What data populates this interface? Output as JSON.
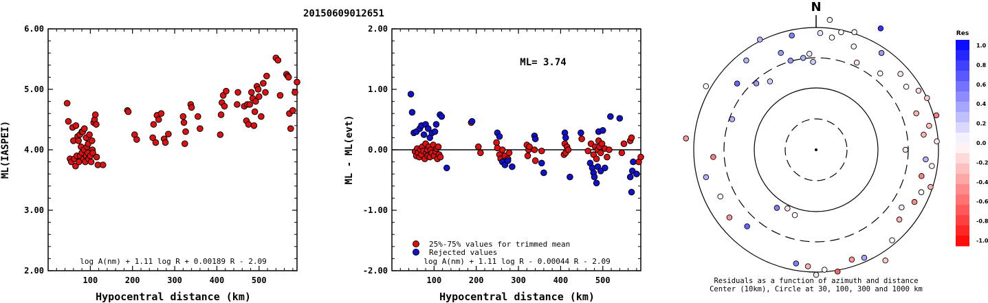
{
  "header": {
    "event_id": "20150609012651"
  },
  "chart_data": [
    {
      "id": "ml_vs_distance",
      "type": "scatter",
      "title": "",
      "xlabel": "Hypocentral distance (km)",
      "ylabel": "ML(IASPEI)",
      "xlim": [
        0,
        590
      ],
      "ylim": [
        2.0,
        6.0
      ],
      "xticks": [
        "100",
        "200",
        "300",
        "400",
        "500"
      ],
      "yticks": [
        "2.00",
        "3.00",
        "4.00",
        "5.00",
        "6.00"
      ],
      "annotation": "log A(nm) + 1.11 log R + 0.00189 R - 2.09",
      "marker_color": "#dd1111",
      "x": [
        45,
        48,
        52,
        55,
        58,
        60,
        62,
        65,
        66,
        68,
        70,
        72,
        73,
        75,
        76,
        78,
        80,
        80,
        82,
        84,
        85,
        86,
        88,
        90,
        90,
        92,
        94,
        95,
        96,
        98,
        100,
        102,
        104,
        105,
        106,
        108,
        110,
        112,
        114,
        115,
        118,
        130,
        188,
        190,
        205,
        210,
        248,
        250,
        255,
        258,
        262,
        268,
        275,
        278,
        285,
        320,
        322,
        324,
        326,
        338,
        340,
        355,
        360,
        408,
        410,
        412,
        415,
        418,
        422,
        448,
        450,
        465,
        470,
        472,
        475,
        478,
        482,
        485,
        488,
        490,
        492,
        495,
        498,
        500,
        505,
        510,
        515,
        518,
        540,
        545,
        550,
        565,
        568,
        570,
        572,
        575,
        580,
        585,
        590
      ],
      "y": [
        4.77,
        4.47,
        3.85,
        3.8,
        4.37,
        4.15,
        3.85,
        3.73,
        4.4,
        3.9,
        4.22,
        4.15,
        3.8,
        4.25,
        3.9,
        4.05,
        4.3,
        3.95,
        4.3,
        3.85,
        4.0,
        4.35,
        3.8,
        4.2,
        3.9,
        4.05,
        3.95,
        4.1,
        3.85,
        4.25,
        3.9,
        3.8,
        4.15,
        4.0,
        3.95,
        4.45,
        4.5,
        4.58,
        4.42,
        3.88,
        3.75,
        3.75,
        4.65,
        4.63,
        4.25,
        4.17,
        4.2,
        4.42,
        4.12,
        4.57,
        4.5,
        4.6,
        4.18,
        4.12,
        4.26,
        4.55,
        4.45,
        4.1,
        4.3,
        4.75,
        4.7,
        4.55,
        4.35,
        4.25,
        4.58,
        4.78,
        4.9,
        4.72,
        4.97,
        4.75,
        4.95,
        4.72,
        4.48,
        4.75,
        4.42,
        4.75,
        4.95,
        4.85,
        4.4,
        4.63,
        4.8,
        5.05,
        5.0,
        4.88,
        4.55,
        5.1,
        4.95,
        5.22,
        5.52,
        5.48,
        4.9,
        5.25,
        5.22,
        5.2,
        4.6,
        4.35,
        4.65,
        4.95,
        5.12
      ]
    },
    {
      "id": "residual_vs_distance",
      "type": "scatter",
      "title": "ML= 3.74",
      "xlabel": "Hypocentral distance (km)",
      "ylabel": "ML - ML(evt)",
      "xlim": [
        0,
        590
      ],
      "ylim": [
        -2.0,
        2.0
      ],
      "xticks": [
        "100",
        "200",
        "300",
        "400",
        "500"
      ],
      "yticks": [
        "-2.00",
        "-1.00",
        "0.00",
        "1.00",
        "2.00"
      ],
      "legend": [
        "25%-75% values for trimmed mean",
        "Rejected values"
      ],
      "legend_position": "bottom-left",
      "annotation": "log A(nm) + 1.11 log R - 0.00044 R - 2.09",
      "series": [
        {
          "name": "25%-75% values for trimmed mean",
          "color": "#dd1111",
          "x": [
            55,
            58,
            60,
            62,
            65,
            68,
            70,
            72,
            75,
            78,
            80,
            82,
            84,
            85,
            88,
            90,
            92,
            95,
            98,
            100,
            104,
            106,
            108,
            110,
            112,
            115,
            188,
            205,
            210,
            248,
            250,
            255,
            258,
            262,
            268,
            275,
            278,
            320,
            322,
            324,
            326,
            338,
            340,
            355,
            408,
            410,
            412,
            415,
            418,
            450,
            465,
            472,
            478,
            482,
            485,
            488,
            490,
            492,
            495,
            498,
            505,
            510,
            515,
            545,
            550,
            565,
            568,
            585,
            590
          ],
          "y": [
            -0.03,
            -0.1,
            0.02,
            -0.05,
            -0.12,
            0.0,
            -0.08,
            0.05,
            -0.02,
            -0.15,
            0.1,
            -0.05,
            0.0,
            -0.1,
            0.05,
            -0.12,
            0.0,
            -0.05,
            0.08,
            -0.1,
            -0.03,
            0.02,
            -0.15,
            0.05,
            -0.08,
            -0.12,
            0.45,
            0.05,
            -0.05,
            0.12,
            0.03,
            -0.08,
            -0.15,
            0.0,
            -0.1,
            -0.15,
            -0.05,
            0.08,
            -0.1,
            0.0,
            0.05,
            0.0,
            -0.18,
            -0.02,
            -0.08,
            0.1,
            -0.05,
            0.05,
            0.0,
            0.18,
            -0.02,
            0.1,
            -0.08,
            0.05,
            -0.15,
            0.0,
            0.15,
            0.05,
            -0.05,
            0.1,
            0.02,
            -0.12,
            0.0,
            -0.05,
            0.1,
            0.15,
            0.2,
            -0.2,
            -0.12
          ]
        },
        {
          "name": "Rejected values",
          "color": "#1111cc",
          "x": [
            45,
            48,
            52,
            58,
            66,
            70,
            76,
            80,
            86,
            90,
            95,
            102,
            105,
            114,
            118,
            130,
            190,
            250,
            255,
            262,
            268,
            275,
            285,
            338,
            340,
            355,
            360,
            410,
            412,
            422,
            448,
            470,
            475,
            478,
            480,
            485,
            488,
            490,
            495,
            500,
            505,
            518,
            540,
            565,
            568,
            570,
            572,
            580
          ],
          "y": [
            0.92,
            0.62,
            0.28,
            0.3,
            0.35,
            0.4,
            0.25,
            0.42,
            0.35,
            0.2,
            0.28,
            0.3,
            0.42,
            0.58,
            0.55,
            -0.3,
            0.47,
            0.28,
            0.22,
            -0.2,
            -0.25,
            -0.18,
            -0.28,
            0.23,
            0.18,
            -0.22,
            -0.38,
            0.28,
            0.2,
            -0.45,
            0.28,
            -0.22,
            -0.3,
            -0.38,
            -0.45,
            -0.55,
            -0.28,
            0.3,
            -0.35,
            0.32,
            -0.3,
            0.55,
            0.52,
            -0.45,
            -0.7,
            -0.35,
            -0.2,
            -0.4
          ]
        }
      ]
    },
    {
      "id": "residual_map",
      "type": "scatter",
      "title": "N",
      "caption_line1": "Residuals as a function of azimuth and distance",
      "caption_line2": "Center (10km), Circle at 30, 100, 300 and 1000 km",
      "colorbar": {
        "title": "Res",
        "labels": [
          "1.0",
          "0.8",
          "0.6",
          "0.4",
          "0.2",
          "0.0",
          "-0.2",
          "-0.4",
          "-0.6",
          "-0.8",
          "-1.0"
        ]
      },
      "points_azimuth_distance_residual": [
        [
          2,
          170,
          0.1
        ],
        [
          6,
          190,
          0.05
        ],
        [
          8,
          165,
          0.0
        ],
        [
          12,
          175,
          0.0
        ],
        [
          18,
          180,
          0.0
        ],
        [
          20,
          160,
          0.05
        ],
        [
          25,
          140,
          -0.1
        ],
        [
          28,
          200,
          0.8
        ],
        [
          34,
          170,
          0.4
        ],
        [
          40,
          145,
          0.0
        ],
        [
          48,
          165,
          -0.1
        ],
        [
          55,
          160,
          0.0
        ],
        [
          60,
          172,
          -0.15
        ],
        [
          65,
          178,
          -0.2
        ],
        [
          70,
          155,
          -0.3
        ],
        [
          74,
          182,
          -0.5
        ],
        [
          78,
          168,
          -0.25
        ],
        [
          82,
          158,
          -0.3
        ],
        [
          86,
          176,
          -0.1
        ],
        [
          90,
          130,
          -0.1
        ],
        [
          95,
          160,
          0.3
        ],
        [
          98,
          170,
          -0.05
        ],
        [
          104,
          158,
          -0.5
        ],
        [
          108,
          175,
          -0.3
        ],
        [
          112,
          165,
          0.0
        ],
        [
          118,
          162,
          -0.45
        ],
        [
          124,
          150,
          0.1
        ],
        [
          130,
          158,
          -0.3
        ],
        [
          140,
          172,
          0.0
        ],
        [
          148,
          190,
          -0.2
        ],
        [
          156,
          172,
          0.35
        ],
        [
          162,
          168,
          -0.4
        ],
        [
          170,
          180,
          -0.6
        ],
        [
          176,
          175,
          0.0
        ],
        [
          180,
          182,
          0.1
        ],
        [
          184,
          170,
          -0.3
        ],
        [
          190,
          168,
          0.5
        ],
        [
          198,
          100,
          0.0
        ],
        [
          206,
          95,
          -0.1
        ],
        [
          214,
          102,
          0.5
        ],
        [
          222,
          150,
          0.6
        ],
        [
          232,
          160,
          -0.4
        ],
        [
          244,
          155,
          0.0
        ],
        [
          256,
          165,
          0.3
        ],
        [
          266,
          150,
          -0.5
        ],
        [
          275,
          190,
          -0.4
        ],
        [
          290,
          130,
          0.3
        ],
        [
          300,
          185,
          0.0
        ],
        [
          310,
          150,
          0.6
        ],
        [
          318,
          130,
          0.4
        ],
        [
          322,
          165,
          0.3
        ],
        [
          326,
          120,
          0.2
        ],
        [
          333,
          180,
          0.3
        ],
        [
          340,
          150,
          0.4
        ],
        [
          344,
          135,
          0.4
        ],
        [
          348,
          170,
          0.5
        ],
        [
          352,
          135,
          0.3
        ],
        [
          356,
          140,
          0.1
        ],
        [
          358,
          128,
          0.2
        ]
      ]
    }
  ]
}
